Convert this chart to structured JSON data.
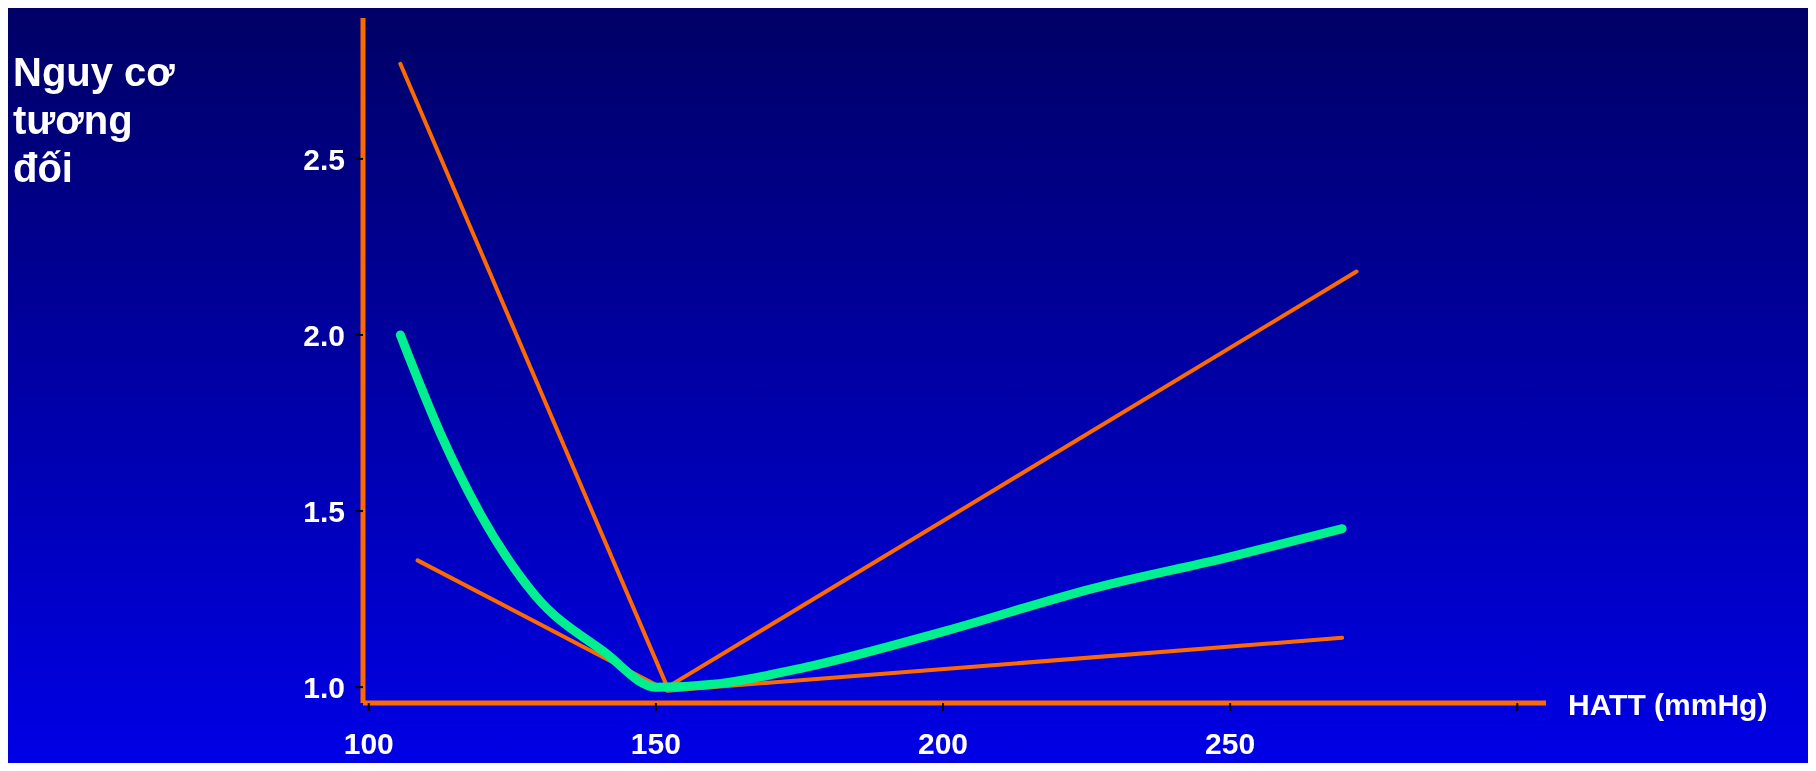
{
  "chart_data": {
    "type": "line",
    "xlabel": "HATT (mmHg)",
    "ylabel": "Nguy cơ tương đối",
    "xlim": [
      99,
      305
    ],
    "xticks": [
      100,
      150,
      200,
      250,
      {
        "value": 300,
        "label": null
      }
    ],
    "ylim": [
      0.955,
      2.9
    ],
    "yticks": [
      {
        "value": 1,
        "label": "1.0"
      },
      1.5,
      {
        "value": 2,
        "label": "2.0"
      },
      2.5
    ],
    "marker": "none",
    "line_style": "solid",
    "series": [
      {
        "color": "#ff6a00",
        "x": [
          105.5,
          152,
          272
        ],
        "values": [
          2.77,
          1.0,
          2.18
        ]
      },
      {
        "color": "#ff6a00",
        "x": [
          108.5,
          152,
          269.5
        ],
        "values": [
          1.36,
          0.99,
          1.14
        ]
      },
      {
        "color": "#00f090",
        "x": [
          105.5,
          112.5,
          119.5,
          129,
          141,
          150,
          161,
          177,
          200.5,
          226,
          250,
          269.5
        ],
        "values": [
          2.0,
          1.72,
          1.49,
          1.26,
          1.1,
          1.0,
          1.01,
          1.06,
          1.16,
          1.28,
          1.37,
          1.45
        ]
      }
    ]
  }
}
